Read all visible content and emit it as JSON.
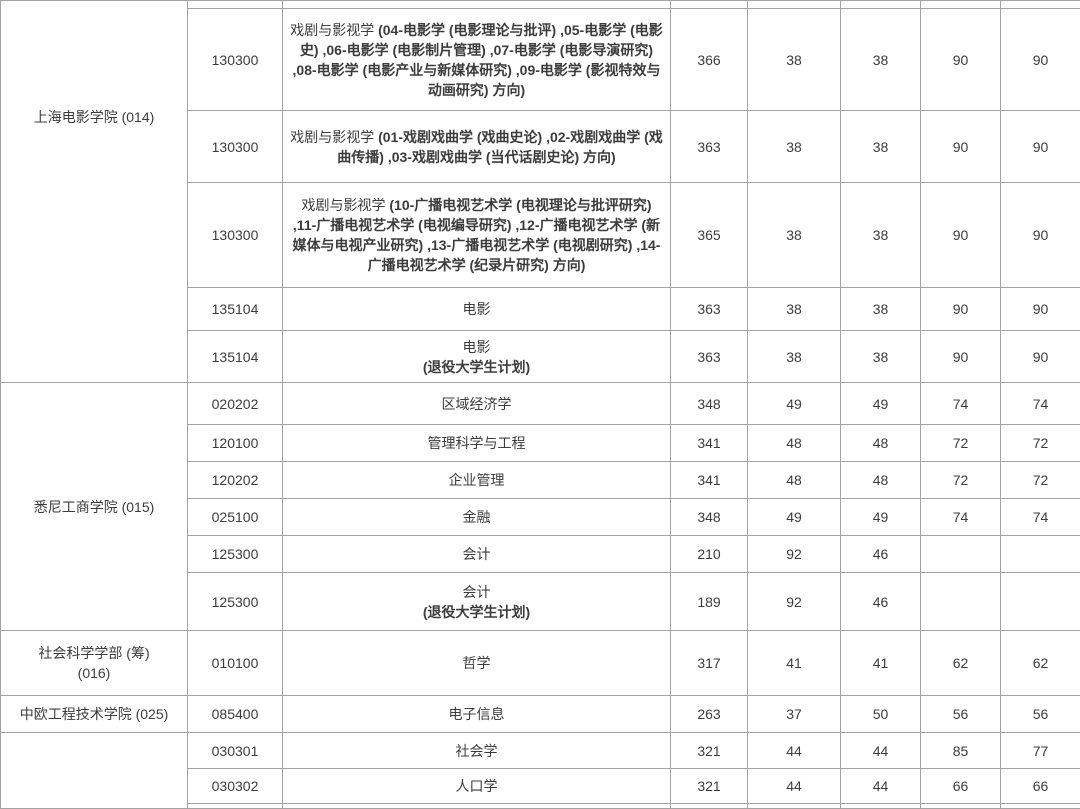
{
  "table": {
    "groups": [
      {
        "college_lines": [
          "上海电影学院 (014)"
        ],
        "rows": [
          {
            "code": "130300",
            "major": [
              {
                "text": "戏剧与影视学 ",
                "bold": false
              },
              {
                "text": "(04-电影学 (电影理论与批评) ,05-电影学 (电影史) ,06-电影学 (电影制片管理) ,07-电影学 (电影导演研究) ,08-电影学 (电影产业与新媒体研究) ,09-电影学 (影视特效与动画研究) 方向)",
                "bold": true
              }
            ],
            "scores": [
              "366",
              "38",
              "38",
              "90",
              "90"
            ]
          },
          {
            "code": "130300",
            "major": [
              {
                "text": "戏剧与影视学 ",
                "bold": false
              },
              {
                "text": "(01-戏剧戏曲学 (戏曲史论) ,02-戏剧戏曲学 (戏曲传播) ,03-戏剧戏曲学 (当代话剧史论) 方向)",
                "bold": true
              }
            ],
            "scores": [
              "363",
              "38",
              "38",
              "90",
              "90"
            ]
          },
          {
            "code": "130300",
            "major": [
              {
                "text": "戏剧与影视学 ",
                "bold": false
              },
              {
                "text": "(10-广播电视艺术学 (电视理论与批评研究) ,11-广播电视艺术学 (电视编导研究) ,12-广播电视艺术学 (新媒体与电视产业研究) ,13-广播电视艺术学 (电视剧研究) ,14-广播电视艺术学 (纪录片研究) 方向)",
                "bold": true
              }
            ],
            "scores": [
              "365",
              "38",
              "38",
              "90",
              "90"
            ]
          },
          {
            "code": "135104",
            "major": [
              {
                "text": "电影",
                "bold": false
              }
            ],
            "scores": [
              "363",
              "38",
              "38",
              "90",
              "90"
            ]
          },
          {
            "code": "135104",
            "major": [
              {
                "text": "电影\n",
                "bold": false
              },
              {
                "text": "(退役大学生计划)",
                "bold": true
              }
            ],
            "scores": [
              "363",
              "38",
              "38",
              "90",
              "90"
            ]
          }
        ]
      },
      {
        "college_lines": [
          "悉尼工商学院 (015)"
        ],
        "rows": [
          {
            "code": "020202",
            "major": [
              {
                "text": "区域经济学",
                "bold": false
              }
            ],
            "scores": [
              "348",
              "49",
              "49",
              "74",
              "74"
            ]
          },
          {
            "code": "120100",
            "major": [
              {
                "text": "管理科学与工程",
                "bold": false
              }
            ],
            "scores": [
              "341",
              "48",
              "48",
              "72",
              "72"
            ]
          },
          {
            "code": "120202",
            "major": [
              {
                "text": "企业管理",
                "bold": false
              }
            ],
            "scores": [
              "341",
              "48",
              "48",
              "72",
              "72"
            ]
          },
          {
            "code": "025100",
            "major": [
              {
                "text": "金融",
                "bold": false
              }
            ],
            "scores": [
              "348",
              "49",
              "49",
              "74",
              "74"
            ]
          },
          {
            "code": "125300",
            "major": [
              {
                "text": "会计",
                "bold": false
              }
            ],
            "scores": [
              "210",
              "92",
              "46",
              "",
              ""
            ]
          },
          {
            "code": "125300",
            "major": [
              {
                "text": "会计\n",
                "bold": false
              },
              {
                "text": "(退役大学生计划)",
                "bold": true
              }
            ],
            "scores": [
              "189",
              "92",
              "46",
              "",
              ""
            ]
          }
        ]
      },
      {
        "college_lines": [
          "社会科学学部 (筹)",
          "(016)"
        ],
        "rows": [
          {
            "code": "010100",
            "major": [
              {
                "text": "哲学",
                "bold": false
              }
            ],
            "scores": [
              "317",
              "41",
              "41",
              "62",
              "62"
            ]
          }
        ]
      },
      {
        "college_lines": [
          "中欧工程技术学院 (025)"
        ],
        "rows": [
          {
            "code": "085400",
            "major": [
              {
                "text": "电子信息",
                "bold": false
              }
            ],
            "scores": [
              "263",
              "37",
              "50",
              "56",
              "56"
            ]
          }
        ]
      },
      {
        "college_lines": [],
        "rows": [
          {
            "code": "030301",
            "major": [
              {
                "text": "社会学",
                "bold": false
              }
            ],
            "scores": [
              "321",
              "44",
              "44",
              "85",
              "77"
            ]
          },
          {
            "code": "030302",
            "major": [
              {
                "text": "人口学",
                "bold": false
              }
            ],
            "scores": [
              "321",
              "44",
              "44",
              "66",
              "66"
            ]
          }
        ]
      }
    ]
  }
}
